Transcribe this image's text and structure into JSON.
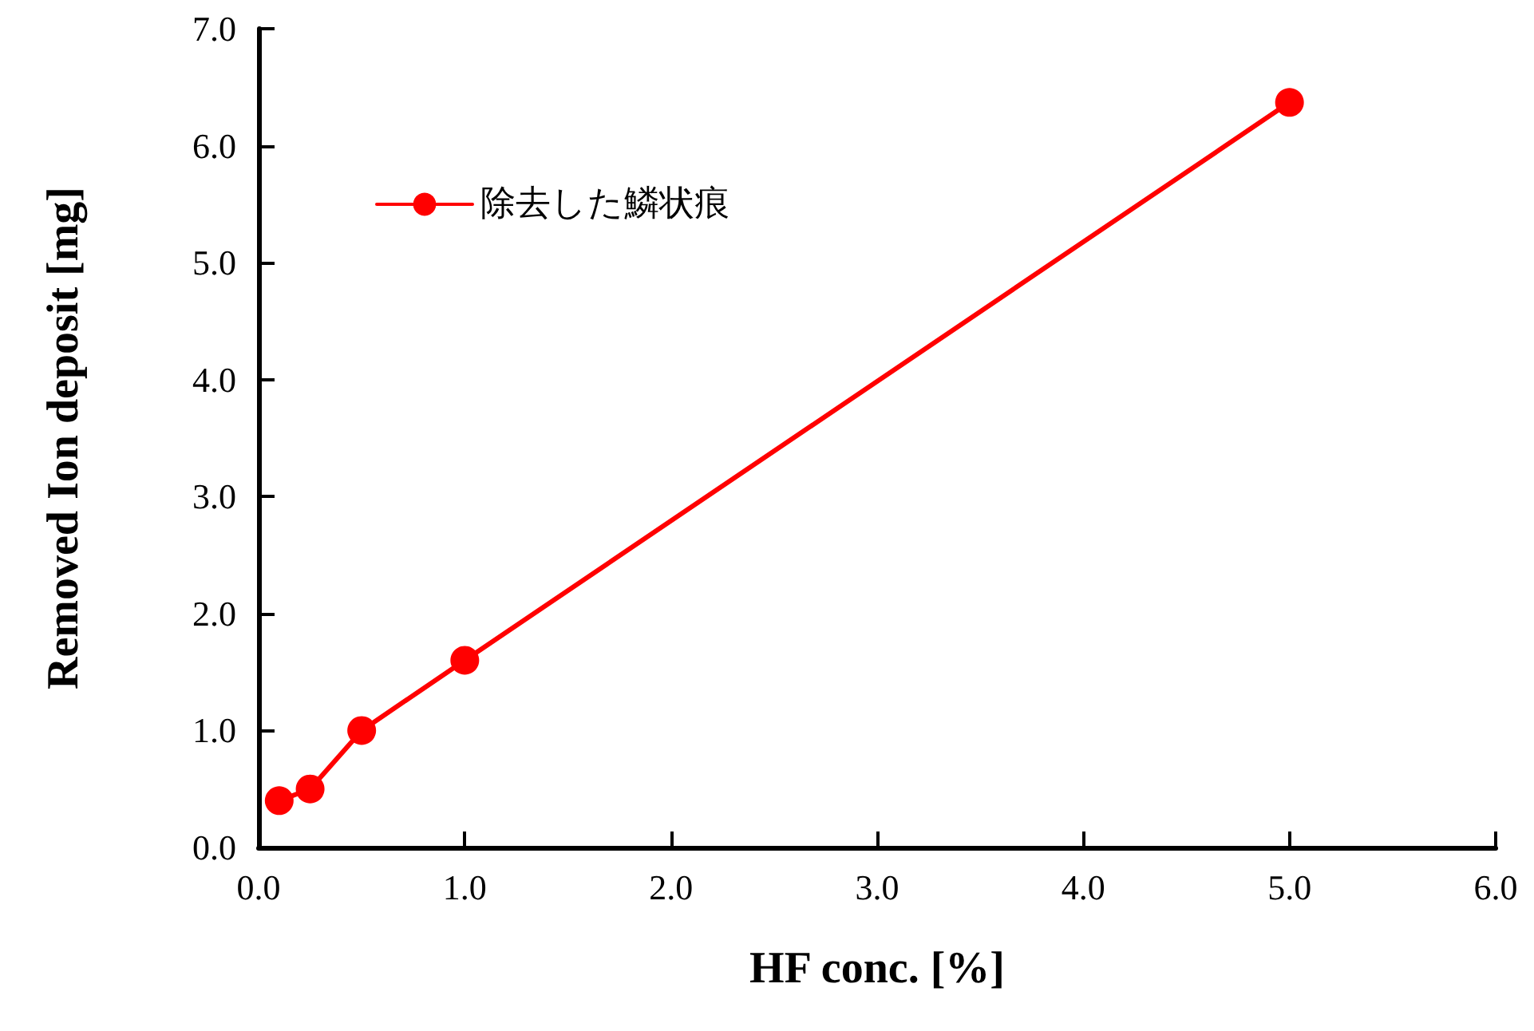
{
  "chart_data": {
    "type": "line",
    "xlabel": "HF conc. [%]",
    "ylabel": "Removed Ion deposit [mg]",
    "x": [
      0.1,
      0.25,
      0.5,
      1.0,
      5.0
    ],
    "series": [
      {
        "name": "除去した鱗状痕",
        "color": "#ff0000",
        "values": [
          0.4,
          0.5,
          1.0,
          1.6,
          6.37
        ]
      }
    ],
    "xlim": [
      0,
      6
    ],
    "xticks": [
      {
        "value": 0,
        "label": "0.0"
      },
      {
        "value": 1,
        "label": "1.0"
      },
      {
        "value": 2,
        "label": "2.0"
      },
      {
        "value": 3,
        "label": "3.0"
      },
      {
        "value": 4,
        "label": "4.0"
      },
      {
        "value": 5,
        "label": "5.0"
      },
      {
        "value": 6,
        "label": "6.0"
      }
    ],
    "ylim": [
      0,
      7
    ],
    "yticks": [
      {
        "value": 0,
        "label": "0.0"
      },
      {
        "value": 1,
        "label": "1.0"
      },
      {
        "value": 2,
        "label": "2.0"
      },
      {
        "value": 3,
        "label": "3.0"
      },
      {
        "value": 4,
        "label": "4.0"
      },
      {
        "value": 5,
        "label": "5.0"
      },
      {
        "value": 6,
        "label": "6.0"
      },
      {
        "value": 7,
        "label": "7.0"
      }
    ],
    "grid": false,
    "legend": "top left",
    "marker": "circle",
    "line_style": "solid"
  }
}
